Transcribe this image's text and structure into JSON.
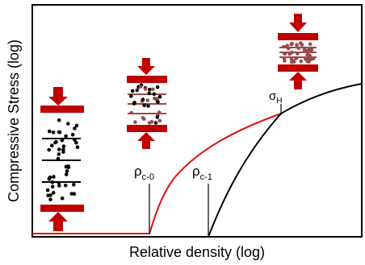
{
  "figure": {
    "xlabel": "Relative density (log)",
    "ylabel": "Compressive Stress (log)",
    "annotations": {
      "rho_c0": {
        "main": "ρ",
        "sub": "c-0"
      },
      "rho_c1": {
        "main": "ρ",
        "sub": "c-1"
      },
      "sigma_h": {
        "main": "σ",
        "sub": "H"
      }
    },
    "colors": {
      "curve_red": "#e01010",
      "curve_black": "#000000",
      "plate": "#c00000",
      "arrow": "#c00000",
      "dot_black": "#000000",
      "dot_brown": "#9a4a4a"
    },
    "insets": [
      {
        "name": "loose-stack",
        "particles": "black"
      },
      {
        "name": "partially-compressed-stack",
        "particles": "mixed"
      },
      {
        "name": "fully-compressed-stack",
        "particles": "brown"
      }
    ]
  }
}
